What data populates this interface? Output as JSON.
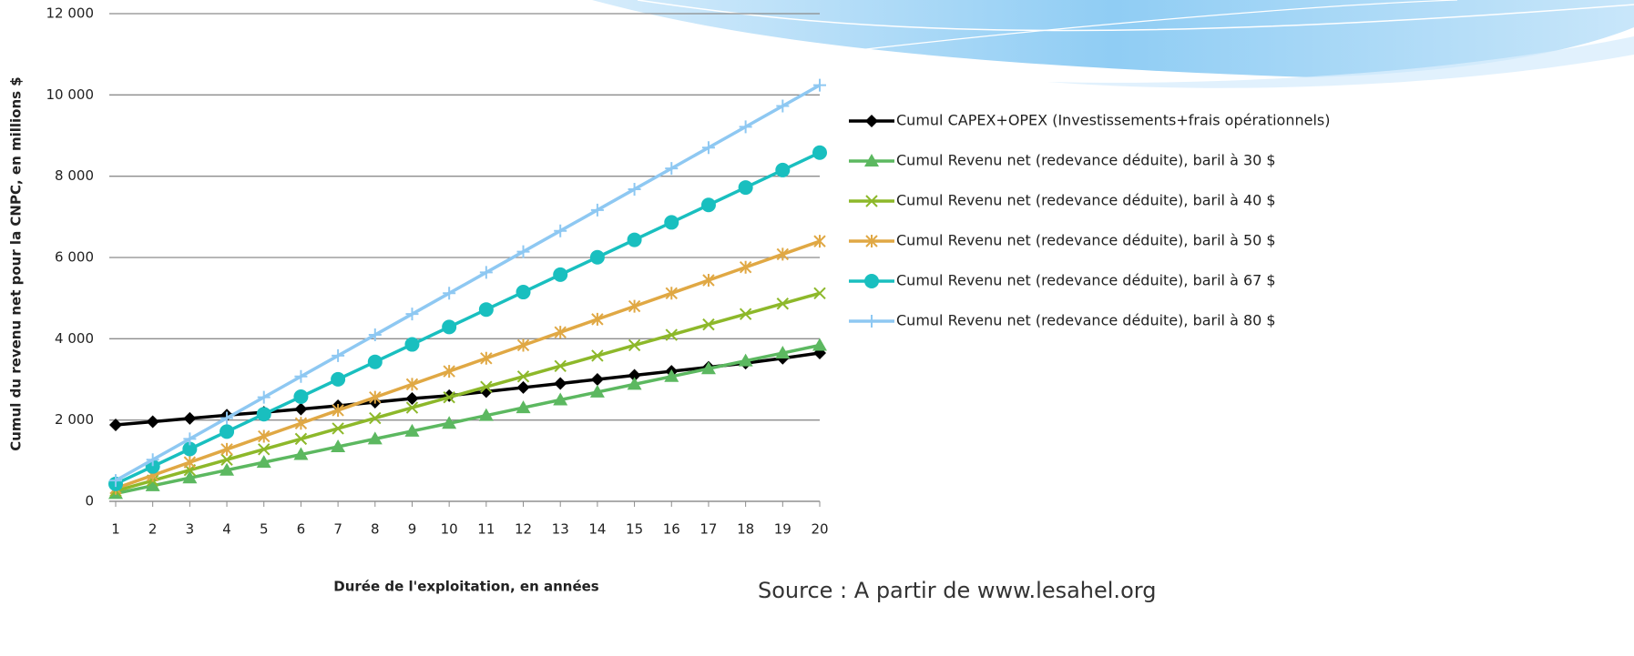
{
  "chart_data": {
    "type": "line",
    "x_label": "Durée de l'exploitation, en années",
    "y_label": "Cumul du revenu net pour la CNPC, en millions  $",
    "source": "Source : A partir de www.lesahel.org",
    "categories": [
      "1",
      "2",
      "3",
      "4",
      "5",
      "6",
      "7",
      "8",
      "9",
      "10",
      "11",
      "12",
      "13",
      "14",
      "15",
      "16",
      "17",
      "18",
      "19",
      "20"
    ],
    "ylim": [
      0,
      12000
    ],
    "yticks": [
      0,
      {
        "value": 2000,
        "label": "2 000"
      },
      {
        "value": 4000,
        "label": "4 000"
      },
      {
        "value": 6000,
        "label": "6 000"
      },
      {
        "value": 8000,
        "label": "8 000"
      },
      {
        "value": 10000,
        "label": "10 000"
      },
      {
        "value": 12000,
        "label": "12 000"
      }
    ],
    "grid": true,
    "series": [
      {
        "name": "Cumul CAPEX+OPEX (Investissements+frais opérationnels)",
        "color": "#000000",
        "marker": "diamond",
        "values": [
          1880,
          1960,
          2040,
          2120,
          2190,
          2270,
          2350,
          2440,
          2530,
          2600,
          2700,
          2800,
          2900,
          3000,
          3100,
          3200,
          3300,
          3400,
          3520,
          3650
        ]
      },
      {
        "name": "Cumul Revenu net (redevance déduite), baril à 30 $",
        "color": "#5cb860",
        "marker": "triangle",
        "values": [
          192,
          384,
          576,
          768,
          960,
          1152,
          1344,
          1536,
          1728,
          1920,
          2112,
          2304,
          2496,
          2688,
          2880,
          3072,
          3264,
          3456,
          3648,
          3840
        ]
      },
      {
        "name": "Cumul Revenu net (redevance déduite), baril à 40 $",
        "color": "#8db82a",
        "marker": "x",
        "values": [
          256,
          512,
          768,
          1024,
          1280,
          1536,
          1792,
          2048,
          2304,
          2560,
          2816,
          3072,
          3328,
          3584,
          3840,
          4096,
          4352,
          4608,
          4864,
          5120
        ]
      },
      {
        "name": "Cumul Revenu net (redevance déduite), baril à 50 $",
        "color": "#e0a844",
        "marker": "star",
        "values": [
          320,
          640,
          960,
          1280,
          1600,
          1920,
          2240,
          2560,
          2880,
          3200,
          3520,
          3840,
          4160,
          4480,
          4800,
          5120,
          5440,
          5760,
          6080,
          6400
        ]
      },
      {
        "name": "Cumul Revenu net (redevance déduite), baril à 67 $",
        "color": "#19bfbf",
        "marker": "circle",
        "values": [
          429,
          858,
          1287,
          1716,
          2145,
          2574,
          3003,
          3432,
          3861,
          4290,
          4719,
          5148,
          5577,
          6006,
          6435,
          6864,
          7293,
          7722,
          8151,
          8580
        ]
      },
      {
        "name": "Cumul Revenu net (redevance déduite), baril à 80 $",
        "color": "#8ec8f2",
        "marker": "plus",
        "values": [
          512,
          1024,
          1536,
          2048,
          2560,
          3072,
          3584,
          4096,
          4608,
          5120,
          5632,
          6144,
          6656,
          7168,
          7680,
          8192,
          8704,
          9216,
          9728,
          10240
        ]
      }
    ]
  }
}
